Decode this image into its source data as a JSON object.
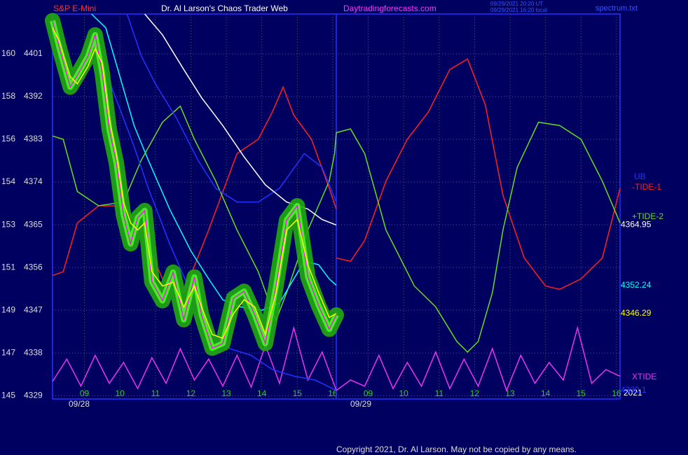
{
  "chart_data": {
    "type": "line",
    "symbol": "S&P E-Mini",
    "title": "Dr. Al Larson's Chaos Trader Web",
    "site": "Daytradingforecasts.com",
    "timestamps": [
      "09/29/2021 20:20 UT",
      "09/29/2021 16:20 local"
    ],
    "file": "spectrum.txt",
    "dates": [
      "09/28",
      "09/29"
    ],
    "year": "2021",
    "copyright": "Copyright 2021, Dr. Al Larson. May not be copied by any means.",
    "xlim": [
      0,
      16
    ],
    "xticks": [
      {
        "value": 0.9,
        "label": "09"
      },
      {
        "value": 1.9,
        "label": "10"
      },
      {
        "value": 2.9,
        "label": "11"
      },
      {
        "value": 3.9,
        "label": "12"
      },
      {
        "value": 4.9,
        "label": "13"
      },
      {
        "value": 5.9,
        "label": "14"
      },
      {
        "value": 6.9,
        "label": "15"
      },
      {
        "value": 7.9,
        "label": "16"
      },
      {
        "value": 8.9,
        "label": "09"
      },
      {
        "value": 9.9,
        "label": "10"
      },
      {
        "value": 10.9,
        "label": "11"
      },
      {
        "value": 11.9,
        "label": "12"
      },
      {
        "value": 12.9,
        "label": "13"
      },
      {
        "value": 13.9,
        "label": "14"
      },
      {
        "value": 14.9,
        "label": "15"
      },
      {
        "value": 15.9,
        "label": "16"
      }
    ],
    "ylim": [
      4328.3,
      4409.4
    ],
    "yticks": [
      4329,
      4338,
      4347,
      4356,
      4365,
      4374,
      4383,
      4392,
      4401
    ],
    "yticks_alt": [
      "145",
      "147",
      "149",
      "151",
      "153",
      "154",
      "156",
      "158",
      "160"
    ],
    "grid": true,
    "day_break": 8.0,
    "series": [
      {
        "color": "#ff00ff",
        "style": "glow",
        "x": [
          0,
          0.2,
          0.5,
          0.7,
          1.0,
          1.2,
          1.4,
          1.6,
          1.8,
          2.0,
          2.2,
          2.4,
          2.6,
          2.8,
          3.1,
          3.4,
          3.7,
          4.0,
          4.2,
          4.5,
          4.8,
          5.1,
          5.4,
          5.7,
          6.0,
          6.3,
          6.6,
          6.9,
          7.2,
          7.5,
          7.8,
          8.0
        ],
        "values": [
          4408.0,
          4402.0,
          4394.0,
          4396.5,
          4400.5,
          4405.0,
          4397.0,
          4385.0,
          4378.0,
          4367.0,
          4361.0,
          4366.5,
          4368.0,
          4353.0,
          4349.0,
          4355.0,
          4345.0,
          4354.0,
          4346.0,
          4339.0,
          4340.0,
          4349.5,
          4351.0,
          4346.0,
          4340.0,
          4352.0,
          4366.0,
          4369.0,
          4354.0,
          4348.0,
          4343.0,
          4346.0
        ]
      },
      {
        "color": "#ffff00",
        "x": [
          0,
          0.2,
          0.5,
          0.7,
          1.0,
          1.2,
          1.4,
          1.6,
          1.8,
          2.0,
          2.2,
          2.4,
          2.6,
          2.8,
          3.1,
          3.4,
          3.7,
          4.0,
          4.2,
          4.5,
          4.8,
          5.1,
          5.4,
          5.7,
          6.0,
          6.3,
          6.6,
          6.9,
          7.2,
          7.5,
          7.8,
          8.0
        ],
        "values": [
          4406.5,
          4403.5,
          4396.2,
          4394.7,
          4398.4,
          4402.1,
          4399.1,
          4387.4,
          4380.0,
          4369.8,
          4365.4,
          4363.9,
          4365.4,
          4355.1,
          4352.1,
          4352.9,
          4347.7,
          4352.1,
          4347.7,
          4341.9,
          4341.1,
          4346.3,
          4349.2,
          4347.7,
          4341.9,
          4350.7,
          4363.9,
          4366.1,
          4356.6,
          4350.7,
          4345.5,
          4346.29
        ]
      },
      {
        "color": "#ffffff",
        "x": [
          2.6,
          3.1,
          3.7,
          4.2,
          4.8,
          5.4,
          6.0,
          6.6,
          7.2,
          7.6,
          8.0
        ],
        "values": [
          4409.4,
          4405.0,
          4397.7,
          4391.8,
          4385.9,
          4379.3,
          4373.4,
          4369.8,
          4368.3,
          4366.1,
          4364.95
        ]
      },
      {
        "color": "#00ffff",
        "x": [
          1.1,
          1.5,
          1.9,
          2.3,
          2.7,
          3.3,
          3.9,
          4.4,
          4.8,
          5.3,
          5.9,
          6.4,
          6.8,
          7.1,
          7.5,
          7.8,
          8.0
        ],
        "values": [
          4409.4,
          4406.5,
          4396.2,
          4385.9,
          4378.6,
          4368.3,
          4359.5,
          4353.6,
          4349.2,
          4347.7,
          4347.0,
          4348.5,
          4353.6,
          4357.3,
          4356.6,
          4353.6,
          4352.24
        ]
      },
      {
        "name": "UB",
        "color": "#2233ff",
        "x": [
          2.1,
          2.5,
          2.9,
          3.5,
          4.1,
          4.6,
          5.2,
          5.8,
          6.4,
          7.1,
          7.6,
          8.0
        ],
        "values": [
          4409.4,
          4400.6,
          4394.7,
          4387.4,
          4378.6,
          4372.7,
          4369.8,
          4369.8,
          4372.7,
          4380.0,
          4377.1,
          4369.8
        ]
      },
      {
        "color": "#2233ff",
        "x": [
          1.1,
          1.7,
          2.3,
          2.7,
          3.3,
          3.9,
          4.4,
          5.0,
          5.6,
          6.2,
          6.8,
          7.4,
          8.0
        ],
        "values": [
          4405.0,
          4393.3,
          4381.5,
          4372.7,
          4361.0,
          4350.7,
          4343.3,
          4338.9,
          4337.5,
          4334.5,
          4333.1,
          4332.3,
          4330.1
        ]
      },
      {
        "name": "-TIDE-1",
        "color": "#ff2020",
        "x": [
          0,
          0.3,
          0.7,
          1.3,
          2.0,
          2.5,
          3.1,
          3.7,
          4.4,
          5.2,
          5.8,
          6.2,
          6.5,
          6.8,
          7.3,
          7.8,
          8.0,
          8.0,
          8.0,
          8.4,
          8.8,
          9.4,
          10.0,
          10.6,
          11.2,
          11.7,
          12.2,
          12.7,
          13.3,
          13.9,
          14.3,
          14.9,
          15.5,
          16.0
        ],
        "values": [
          4354.3,
          4355.1,
          4365.4,
          4369.0,
          4369.0,
          4363.9,
          4353.6,
          4350.7,
          4363.9,
          4380.0,
          4383.0,
          4388.8,
          4394.0,
          4388.1,
          4383.0,
          4372.7,
          4368.3,
          null,
          4358.0,
          4357.3,
          4361.7,
          4374.2,
          4383.0,
          4388.8,
          4397.7,
          4399.9,
          4390.3,
          4371.2,
          4358.0,
          4352.1,
          4351.4,
          4353.6,
          4358.0,
          4372.7
        ]
      },
      {
        "name": "+TIDE-2",
        "color": "#66dd22",
        "x": [
          0,
          0.3,
          0.7,
          1.3,
          2.0,
          2.5,
          3.1,
          3.6,
          4.0,
          4.6,
          5.2,
          5.8,
          6.3,
          6.6,
          7.2,
          7.8,
          7.95,
          8.0,
          8.4,
          8.8,
          9.4,
          10.2,
          10.8,
          11.4,
          11.7,
          12.0,
          12.4,
          12.7,
          13.1,
          13.7,
          14.3,
          14.9,
          15.5,
          16.0
        ],
        "values": [
          4383.7,
          4383.0,
          4372.0,
          4369.0,
          4369.8,
          4378.6,
          4386.6,
          4390.0,
          4383.0,
          4374.2,
          4363.9,
          4355.1,
          4344.8,
          4350.7,
          4363.9,
          4374.2,
          4380.0,
          4384.4,
          4385.2,
          4380.0,
          4363.9,
          4352.1,
          4347.7,
          4340.4,
          4338.2,
          4340.4,
          4350.7,
          4363.9,
          4377.1,
          4386.6,
          4385.9,
          4383.0,
          4374.2,
          4365.4
        ]
      },
      {
        "name": "XTIDE",
        "color": "#ee33ee",
        "x": [
          0,
          0.4,
          0.8,
          1.2,
          1.6,
          2.0,
          2.4,
          2.8,
          3.2,
          3.6,
          4.0,
          4.4,
          4.8,
          5.2,
          5.6,
          6.0,
          6.4,
          6.8,
          7.2,
          7.6,
          8.0,
          8.4,
          8.8,
          9.2,
          9.6,
          10.0,
          10.4,
          10.8,
          11.2,
          11.6,
          12.0,
          12.4,
          12.8,
          13.2,
          13.6,
          14.0,
          14.4,
          14.8,
          15.2,
          15.6,
          16.0
        ],
        "values": [
          4332.0,
          4336.7,
          4331.0,
          4337.5,
          4331.6,
          4336.0,
          4330.5,
          4337.0,
          4331.6,
          4338.9,
          4332.3,
          4336.7,
          4331.0,
          4337.5,
          4330.8,
          4339.6,
          4331.6,
          4343.3,
          4332.3,
          4338.2,
          4330.1,
          4332.3,
          4331.0,
          4337.5,
          4330.5,
          4336.0,
          4331.0,
          4338.2,
          4330.5,
          4336.7,
          4331.0,
          4338.9,
          4330.1,
          4337.5,
          4331.6,
          4336.0,
          4332.3,
          4343.3,
          4331.6,
          4334.5,
          4333.1
        ]
      }
    ]
  }
}
